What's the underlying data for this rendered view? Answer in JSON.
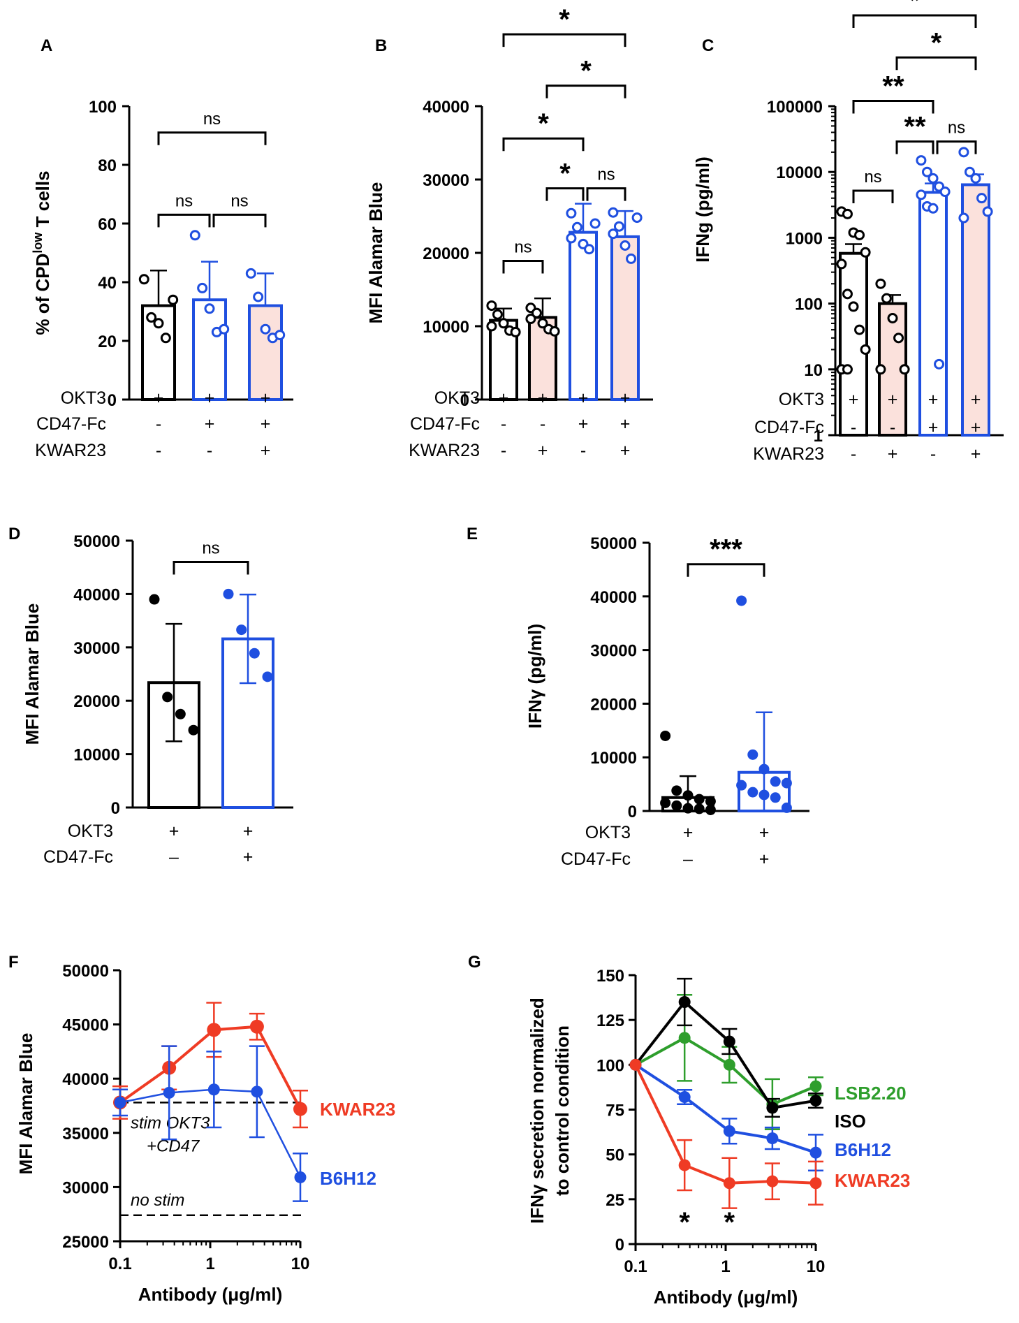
{
  "chart_data": [
    {
      "panel": "A",
      "type": "bar",
      "ylabel": "% of CPD",
      "ylabel_sup": "low",
      "ylabel_tail": " T cells",
      "ylim": [
        0,
        100
      ],
      "yticks": [
        "0",
        "20",
        "40",
        "60",
        "80",
        "100"
      ],
      "categories": [
        "1",
        "2",
        "3"
      ],
      "values": [
        32,
        34,
        32
      ],
      "errors": [
        12,
        13,
        11
      ],
      "points": [
        [
          41,
          28,
          26,
          21,
          34
        ],
        [
          56,
          38,
          31,
          23,
          24
        ],
        [
          43,
          35,
          24,
          21,
          22
        ]
      ],
      "colors": [
        "#000000",
        "#1f4fe0",
        "#1f4fe0"
      ],
      "fills": [
        "#ffffff",
        "#ffffff",
        "#fbe1dc"
      ],
      "point_style": "open",
      "conditions": [
        {
          "name": "OKT3",
          "signs": [
            "+",
            "+",
            "+"
          ]
        },
        {
          "name": "CD47-Fc",
          "signs": [
            "-",
            "+",
            "+"
          ]
        },
        {
          "name": "KWAR23",
          "signs": [
            "-",
            "-",
            "+"
          ]
        }
      ],
      "comparisons": [
        {
          "from": 0,
          "to": 1,
          "label": "ns",
          "level": 63
        },
        {
          "from": 1,
          "to": 2,
          "label": "ns",
          "level": 63
        },
        {
          "from": 0,
          "to": 2,
          "label": "ns",
          "level": 91
        }
      ]
    },
    {
      "panel": "B",
      "type": "bar",
      "ylabel": "MFI Alamar Blue",
      "ylim": [
        0,
        40000
      ],
      "yticks": [
        "0",
        "10000",
        "20000",
        "30000",
        "40000"
      ],
      "categories": [
        "1",
        "2",
        "3",
        "4"
      ],
      "values": [
        10800,
        11200,
        22800,
        22200
      ],
      "errors": [
        1600,
        2600,
        3900,
        3500
      ],
      "points": [
        [
          12800,
          11600,
          10400,
          9400,
          9200,
          10000
        ],
        [
          12500,
          11800,
          10400,
          9600,
          9300,
          11000
        ],
        [
          25400,
          23500,
          21200,
          20500,
          24000,
          22000
        ],
        [
          25500,
          23600,
          21000,
          19200,
          24800,
          22600
        ]
      ],
      "colors": [
        "#000000",
        "#000000",
        "#1f4fe0",
        "#1f4fe0"
      ],
      "fills": [
        "#ffffff",
        "#fbe1dc",
        "#ffffff",
        "#fbe1dc"
      ],
      "point_style": "open",
      "conditions": [
        {
          "name": "OKT3",
          "signs": [
            "+",
            "+",
            "+",
            "+"
          ]
        },
        {
          "name": "CD47-Fc",
          "signs": [
            "-",
            "-",
            "+",
            "+"
          ]
        },
        {
          "name": "KWAR23",
          "signs": [
            "-",
            "+",
            "-",
            "+"
          ]
        }
      ],
      "comparisons": [
        {
          "from": 0,
          "to": 1,
          "label": "ns",
          "level": 18900
        },
        {
          "from": 1,
          "to": 2,
          "label": "*",
          "level": 28800
        },
        {
          "from": 2,
          "to": 3,
          "label": "ns",
          "level": 28800
        },
        {
          "from": 0,
          "to": 2,
          "label": "*",
          "level": 35600
        },
        {
          "from": 1,
          "to": 3,
          "label": "*",
          "level": 42800
        },
        {
          "from": 0,
          "to": 3,
          "label": "*",
          "level": 49800
        }
      ]
    },
    {
      "panel": "C",
      "type": "bar",
      "ylabel": "IFNg (pg/ml)",
      "yscale": "log",
      "ylim": [
        1,
        100000
      ],
      "yticks": [
        "1",
        "10",
        "100",
        "1000",
        "10000",
        "100000"
      ],
      "categories": [
        "1",
        "2",
        "3",
        "4"
      ],
      "values": [
        580,
        100,
        4900,
        6400
      ],
      "errors": [
        220,
        35,
        1800,
        2800
      ],
      "points": [
        [
          2500,
          2300,
          1200,
          1100,
          600,
          400,
          140,
          90,
          40,
          20,
          10,
          10
        ],
        [
          200,
          120,
          60,
          30,
          10,
          10
        ],
        [
          15000,
          10000,
          8000,
          6000,
          5000,
          4500,
          3000,
          2800,
          12
        ],
        [
          20000,
          10000,
          8000,
          4000,
          2500,
          2000
        ]
      ],
      "colors": [
        "#000000",
        "#000000",
        "#1f4fe0",
        "#1f4fe0"
      ],
      "fills": [
        "#ffffff",
        "#fbe1dc",
        "#ffffff",
        "#fbe1dc"
      ],
      "point_style": "open",
      "conditions": [
        {
          "name": "OKT3",
          "signs": [
            "+",
            "+",
            "+",
            "+"
          ]
        },
        {
          "name": "CD47-Fc",
          "signs": [
            "-",
            "-",
            "+",
            "+"
          ]
        },
        {
          "name": "KWAR23",
          "signs": [
            "-",
            "+",
            "-",
            "+"
          ]
        }
      ],
      "comparisons": [
        {
          "from": 0,
          "to": 1,
          "label": "ns",
          "level": 5200
        },
        {
          "from": 1,
          "to": 2,
          "label": "**",
          "level": 29000
        },
        {
          "from": 2,
          "to": 3,
          "label": "ns",
          "level": 29000
        },
        {
          "from": 0,
          "to": 2,
          "label": "**",
          "level": 120000
        },
        {
          "from": 1,
          "to": 3,
          "label": "*",
          "level": 550000
        },
        {
          "from": 0,
          "to": 3,
          "label": "*",
          "level": 2400000
        }
      ]
    },
    {
      "panel": "D",
      "type": "bar",
      "ylabel": "MFI Alamar Blue",
      "ylim": [
        0,
        50000
      ],
      "yticks": [
        "0",
        "10000",
        "20000",
        "30000",
        "40000",
        "50000"
      ],
      "categories": [
        "1",
        "2"
      ],
      "values": [
        23400,
        31600
      ],
      "errors": [
        11000,
        8300
      ],
      "points": [
        [
          39000,
          20700,
          17500,
          14500
        ],
        [
          40000,
          33300,
          28900,
          24500
        ]
      ],
      "colors": [
        "#000000",
        "#1f4fe0"
      ],
      "fills": [
        "#ffffff",
        "#ffffff"
      ],
      "point_style": "filled",
      "conditions": [
        {
          "name": "OKT3",
          "signs": [
            "+",
            "+"
          ]
        },
        {
          "name": "CD47-Fc",
          "signs": [
            "–",
            "+"
          ]
        }
      ],
      "comparisons": [
        {
          "from": 0,
          "to": 1,
          "label": "ns",
          "level": 46000
        }
      ]
    },
    {
      "panel": "E",
      "type": "bar",
      "ylabel": "IFNγ (pg/ml)",
      "ylim": [
        0,
        50000
      ],
      "yticks": [
        "0",
        "10000",
        "20000",
        "30000",
        "40000",
        "50000"
      ],
      "categories": [
        "1",
        "2"
      ],
      "values": [
        2500,
        7200
      ],
      "errors": [
        4000,
        11200
      ],
      "points": [
        [
          14000,
          3800,
          2900,
          2200,
          1800,
          1500,
          1000,
          500,
          400,
          200
        ],
        [
          39200,
          10500,
          7800,
          5500,
          5200,
          4800,
          3500,
          3000,
          2500,
          600
        ]
      ],
      "colors": [
        "#000000",
        "#1f4fe0"
      ],
      "fills": [
        "#ffffff",
        "#ffffff"
      ],
      "point_style": "filled",
      "conditions": [
        {
          "name": "OKT3",
          "signs": [
            "+",
            "+"
          ]
        },
        {
          "name": "CD47-Fc",
          "signs": [
            "–",
            "+"
          ]
        }
      ],
      "comparisons": [
        {
          "from": 0,
          "to": 1,
          "label": "***",
          "level": 46000
        }
      ]
    },
    {
      "panel": "F",
      "type": "line",
      "xlabel": "Antibody (μg/ml)",
      "ylabel": "MFI Alamar Blue",
      "xscale": "log",
      "xlim": [
        0.1,
        10
      ],
      "xticks": [
        "0.1",
        "1",
        "10"
      ],
      "ylim": [
        25000,
        50000
      ],
      "yticks": [
        "25000",
        "30000",
        "35000",
        "40000",
        "45000",
        "50000"
      ],
      "x": [
        0.1,
        0.35,
        1.1,
        3.3,
        10
      ],
      "series": [
        {
          "name": "KWAR23",
          "color": "#ef3b24",
          "values": [
            37800,
            41000,
            44500,
            44800,
            37200
          ],
          "errors": [
            1500,
            2000,
            2500,
            1200,
            1700
          ]
        },
        {
          "name": "B6H12",
          "color": "#1f4fe0",
          "values": [
            37800,
            38700,
            39000,
            38800,
            30900
          ],
          "errors": [
            1200,
            4300,
            3500,
            4200,
            2200
          ]
        }
      ],
      "reference_lines": [
        {
          "label_1": "stim OKT3",
          "label_2": "+CD47",
          "value": 37800
        },
        {
          "label_1": "no stim",
          "value": 27400
        }
      ]
    },
    {
      "panel": "G",
      "type": "line",
      "xlabel": "Antibody (μg/ml)",
      "ylabel_1": "IFNγ secretion normalized",
      "ylabel_2": "to control condition",
      "xscale": "log",
      "xlim": [
        0.1,
        10
      ],
      "xticks": [
        "0.1",
        "1",
        "10"
      ],
      "ylim": [
        0,
        150
      ],
      "yticks": [
        "0",
        "25",
        "50",
        "75",
        "100",
        "125",
        "150"
      ],
      "x": [
        0.1,
        0.35,
        1.1,
        3.3,
        10
      ],
      "series": [
        {
          "name": "LSB2.20",
          "color": "#2e9e2c",
          "values": [
            100,
            115,
            100,
            78,
            88
          ],
          "errors": [
            0,
            24,
            10,
            14,
            5
          ]
        },
        {
          "name": "ISO",
          "color": "#000000",
          "values": [
            100,
            135,
            113,
            76,
            80
          ],
          "errors": [
            0,
            13,
            7,
            5,
            4
          ]
        },
        {
          "name": "B6H12",
          "color": "#1f4fe0",
          "values": [
            100,
            82,
            63,
            59,
            51
          ],
          "errors": [
            0,
            4,
            7,
            6,
            10
          ]
        },
        {
          "name": "KWAR23",
          "color": "#ef3b24",
          "values": [
            100,
            44,
            34,
            35,
            34
          ],
          "errors": [
            0,
            14,
            14,
            10,
            12
          ]
        }
      ],
      "annotations": [
        {
          "text": "*",
          "x": 0.35
        },
        {
          "text": "*",
          "x": 1.1
        }
      ]
    }
  ]
}
